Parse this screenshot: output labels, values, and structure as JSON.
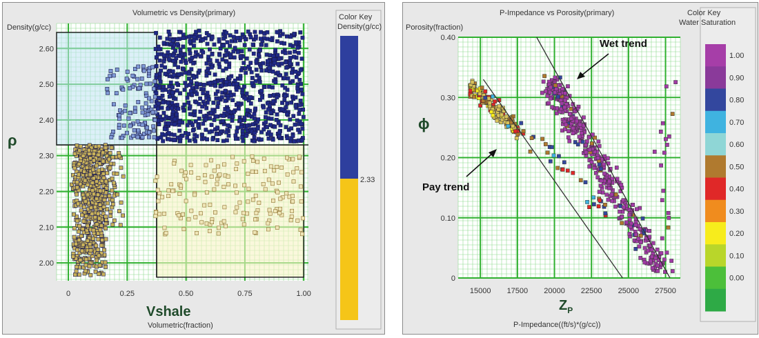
{
  "charts": [
    {
      "title": "Volumetric vs Density(primary)",
      "ylabel_small": "Density(g/cc)",
      "ylabel_big": "ρ",
      "xlabel_big": "Vshale",
      "xlabel_small": "Volumetric(fraction)",
      "color_key_title": "Color Key",
      "color_key_subtitle": "Density(g/cc)",
      "cutoff_label": "2.33"
    },
    {
      "title": "P-Impedance vs Porosity(primary)",
      "ylabel_small": "Porosity(fraction)",
      "ylabel_big": "ϕ",
      "xlabel_big": "Z",
      "xlabel_big_sub": "P",
      "xlabel_small": "P-Impedance((ft/s)*(g/cc))",
      "color_key_title": "Color Key",
      "color_key_subtitle": "Water Saturation",
      "annotations": [
        "Wet trend",
        "Pay trend"
      ]
    }
  ],
  "chart_data": [
    {
      "type": "scatter",
      "title": "Volumetric vs Density(primary)",
      "xlabel": "Volumetric(fraction)",
      "ylabel": "Density(g/cc)",
      "xlim": [
        -0.05,
        1.02
      ],
      "ylim": [
        1.95,
        2.67
      ],
      "xticks": [
        "0",
        "0.25",
        "0.50",
        "0.75",
        "1.00"
      ],
      "xtick_values": [
        0,
        0.25,
        0.5,
        0.75,
        1.0
      ],
      "yticks": [
        "2.00",
        "2.10",
        "2.20",
        "2.30",
        "2.40",
        "2.50",
        "2.60"
      ],
      "ytick_values": [
        2.0,
        2.1,
        2.2,
        2.3,
        2.4,
        2.5,
        2.6
      ],
      "cutoffs": {
        "x": 0.375,
        "y": 2.33
      },
      "color_key": [
        {
          "label": "2.33",
          "color_above": "#2e3f9e",
          "color_below": "#f5c518"
        }
      ],
      "series": [
        {
          "region": "upper-right",
          "color": "#1f2a88",
          "n": 900,
          "x_range": [
            0.37,
            1.0
          ],
          "y_range": [
            2.34,
            2.65
          ]
        },
        {
          "region": "upper-left",
          "color": "#7e98d4",
          "n": 120,
          "x_range": [
            0.1,
            0.37
          ],
          "y_range": [
            2.35,
            2.55
          ]
        },
        {
          "region": "lower-left",
          "color": "#c9b25a",
          "n": 650,
          "x_range": [
            0.0,
            0.37
          ],
          "y_range": [
            1.96,
            2.33
          ]
        },
        {
          "region": "lower-right",
          "color": "#efe6b8",
          "n": 160,
          "x_range": [
            0.37,
            1.0
          ],
          "y_range": [
            2.08,
            2.3
          ]
        }
      ]
    },
    {
      "type": "scatter",
      "title": "P-Impedance vs Porosity(primary)",
      "xlabel": "P-Impedance((ft/s)*(g/cc))",
      "ylabel": "Porosity(fraction)",
      "xlim": [
        13500,
        28500
      ],
      "ylim": [
        0,
        0.4
      ],
      "xticks": [
        "15000",
        "17500",
        "20000",
        "22500",
        "25000",
        "27500"
      ],
      "xtick_values": [
        15000,
        17500,
        20000,
        22500,
        25000,
        27500
      ],
      "yticks": [
        "0",
        "0.10",
        "0.20",
        "0.30",
        "0.40"
      ],
      "ytick_values": [
        0,
        0.1,
        0.2,
        0.3,
        0.4
      ],
      "color_key": [
        {
          "label": "1.00",
          "color": "#a63ea8"
        },
        {
          "label": "0.90",
          "color": "#8a3a9a"
        },
        {
          "label": "0.80",
          "color": "#33479e"
        },
        {
          "label": "0.70",
          "color": "#3fb3e0"
        },
        {
          "label": "0.60",
          "color": "#8fd6d6"
        },
        {
          "label": "0.50",
          "color": "#b07a2f"
        },
        {
          "label": "0.40",
          "color": "#e02828"
        },
        {
          "label": "0.30",
          "color": "#f08c1e"
        },
        {
          "label": "0.20",
          "color": "#f7ec1c"
        },
        {
          "label": "0.10",
          "color": "#b9d62a"
        },
        {
          "label": "0.00",
          "color": "#4cbf3a"
        },
        {
          "label": "",
          "color": "#2eaa46"
        }
      ],
      "trend_lines": [
        {
          "name": "wet",
          "from": [
            18800,
            0.4
          ],
          "to": [
            27800,
            0.0
          ]
        },
        {
          "name": "pay",
          "from": [
            15200,
            0.33
          ],
          "to": [
            24600,
            0.0
          ]
        }
      ],
      "series": [
        {
          "name": "pay cluster",
          "color": "#d8c25a",
          "n": 150,
          "x_range": [
            14200,
            17800
          ],
          "y_range": [
            0.22,
            0.32
          ]
        },
        {
          "name": "wet cluster",
          "color": "#a13ba5",
          "n": 430,
          "x_range": [
            19500,
            27800
          ],
          "y_range": [
            0.0,
            0.34
          ]
        },
        {
          "name": "scatter",
          "color": "#b07a2f",
          "n": 40,
          "x_range": [
            15000,
            24000
          ],
          "y_range": [
            0.1,
            0.31
          ]
        }
      ]
    }
  ]
}
